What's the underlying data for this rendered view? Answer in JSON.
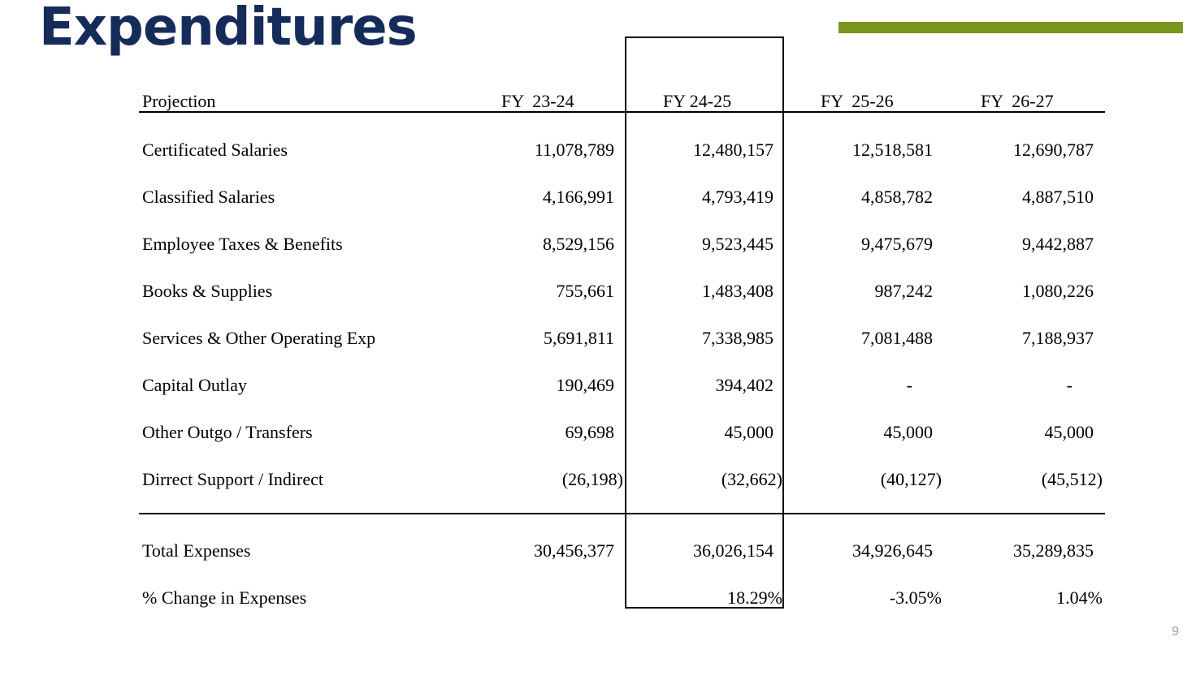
{
  "slide": {
    "title": "Expenditures",
    "page_number": "9",
    "accent_color": "#7a961e",
    "title_color": "#152c5b"
  },
  "table": {
    "headers": [
      "Projection",
      "FY  23-24",
      "FY 24-25",
      "FY  25-26",
      "FY  26-27"
    ],
    "rows": [
      {
        "label": "Certificated Salaries",
        "values": [
          "11,078,789",
          "12,480,157",
          "12,518,581",
          "12,690,787"
        ]
      },
      {
        "label": "Classified Salaries",
        "values": [
          "4,166,991",
          "4,793,419",
          "4,858,782",
          "4,887,510"
        ]
      },
      {
        "label": "Employee Taxes & Benefits",
        "values": [
          "8,529,156",
          "9,523,445",
          "9,475,679",
          "9,442,887"
        ]
      },
      {
        "label": "Books & Supplies",
        "values": [
          "755,661",
          "1,483,408",
          "987,242",
          "1,080,226"
        ]
      },
      {
        "label": "Services & Other Operating Exp",
        "values": [
          "5,691,811",
          "7,338,985",
          "7,081,488",
          "7,188,937"
        ]
      },
      {
        "label": "Capital Outlay",
        "values": [
          "190,469",
          "394,402",
          "-",
          "-"
        ]
      },
      {
        "label": "Other Outgo / Transfers",
        "values": [
          "69,698",
          "45,000",
          "45,000",
          "45,000"
        ]
      },
      {
        "label": "Dirrect Support / Indirect",
        "values": [
          "(26,198)",
          "(32,662)",
          "(40,127)",
          "(45,512)"
        ]
      }
    ],
    "totals": [
      {
        "label": "Total Expenses",
        "values": [
          "30,456,377",
          "36,026,154",
          "34,926,645",
          "35,289,835"
        ]
      },
      {
        "label": "% Change in Expenses",
        "values": [
          "",
          "18.29%",
          "-3.05%",
          "1.04%"
        ]
      }
    ]
  }
}
